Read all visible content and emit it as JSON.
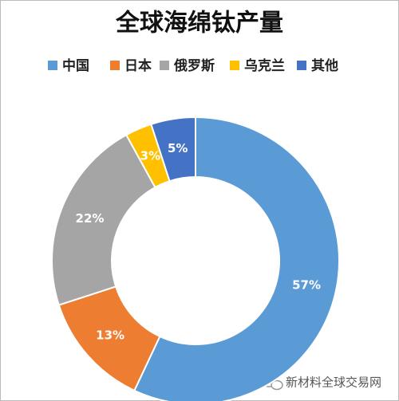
{
  "chart_data": {
    "type": "donut",
    "title": "全球海绵钛产量",
    "categories": [
      "中国",
      "日本",
      "俄罗斯",
      "乌克兰",
      "其他"
    ],
    "values": [
      57,
      13,
      22,
      3,
      5
    ],
    "value_labels": [
      "57%",
      "13%",
      "22%",
      "3%",
      "5%"
    ],
    "colors": [
      "#5b9bd5",
      "#ed7d31",
      "#a5a5a5",
      "#ffc000",
      "#4472c4"
    ],
    "legend": "top",
    "watermark": "新材料全球交易网"
  }
}
